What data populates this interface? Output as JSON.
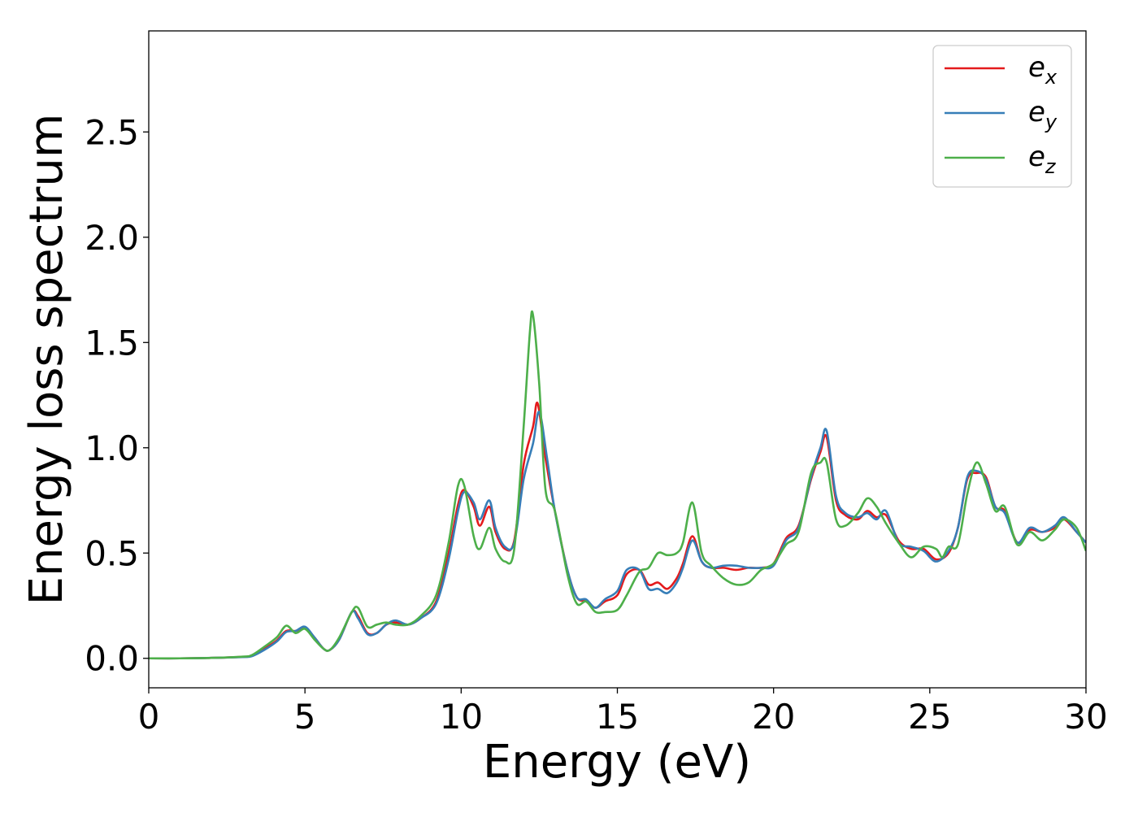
{
  "chart_data": {
    "type": "line",
    "title": "",
    "xlabel": "Energy (eV)",
    "ylabel": "Energy loss spectrum",
    "xlim": [
      0,
      30
    ],
    "ylim": [
      -0.14,
      2.98
    ],
    "xticks": [
      "0",
      "5",
      "10",
      "15",
      "20",
      "25",
      "30"
    ],
    "yticks": [
      "0.0",
      "0.5",
      "1.0",
      "1.5",
      "2.0",
      "2.5"
    ],
    "grid": false,
    "legend_position": "top-right",
    "series": [
      {
        "name": "e_x",
        "label_main": "e",
        "label_sub": "x",
        "color": "#e41a1c",
        "points": [
          [
            0,
            0
          ],
          [
            1,
            0
          ],
          [
            2,
            0.002
          ],
          [
            3,
            0.007
          ],
          [
            3.3,
            0.012
          ],
          [
            3.7,
            0.045
          ],
          [
            4.1,
            0.085
          ],
          [
            4.4,
            0.13
          ],
          [
            4.7,
            0.13
          ],
          [
            5.0,
            0.145
          ],
          [
            5.3,
            0.1
          ],
          [
            5.6,
            0.045
          ],
          [
            5.8,
            0.04
          ],
          [
            6.1,
            0.09
          ],
          [
            6.5,
            0.22
          ],
          [
            6.7,
            0.2
          ],
          [
            7.0,
            0.12
          ],
          [
            7.3,
            0.12
          ],
          [
            7.6,
            0.16
          ],
          [
            7.9,
            0.17
          ],
          [
            8.3,
            0.16
          ],
          [
            8.7,
            0.19
          ],
          [
            9.2,
            0.27
          ],
          [
            9.6,
            0.5
          ],
          [
            9.9,
            0.73
          ],
          [
            10.1,
            0.8
          ],
          [
            10.4,
            0.72
          ],
          [
            10.6,
            0.63
          ],
          [
            10.9,
            0.72
          ],
          [
            11.1,
            0.6
          ],
          [
            11.4,
            0.52
          ],
          [
            11.7,
            0.56
          ],
          [
            12.0,
            0.92
          ],
          [
            12.3,
            1.1
          ],
          [
            12.45,
            1.21
          ],
          [
            12.7,
            0.95
          ],
          [
            13.0,
            0.7
          ],
          [
            13.4,
            0.42
          ],
          [
            13.7,
            0.29
          ],
          [
            14.0,
            0.27
          ],
          [
            14.3,
            0.24
          ],
          [
            14.6,
            0.27
          ],
          [
            15.0,
            0.3
          ],
          [
            15.3,
            0.4
          ],
          [
            15.7,
            0.42
          ],
          [
            16.0,
            0.35
          ],
          [
            16.3,
            0.36
          ],
          [
            16.6,
            0.33
          ],
          [
            16.9,
            0.38
          ],
          [
            17.1,
            0.45
          ],
          [
            17.4,
            0.58
          ],
          [
            17.7,
            0.46
          ],
          [
            18.0,
            0.43
          ],
          [
            18.4,
            0.43
          ],
          [
            18.8,
            0.42
          ],
          [
            19.2,
            0.43
          ],
          [
            19.6,
            0.43
          ],
          [
            20.0,
            0.45
          ],
          [
            20.4,
            0.57
          ],
          [
            20.8,
            0.63
          ],
          [
            21.2,
            0.85
          ],
          [
            21.5,
            0.98
          ],
          [
            21.7,
            1.05
          ],
          [
            22.0,
            0.75
          ],
          [
            22.3,
            0.68
          ],
          [
            22.7,
            0.66
          ],
          [
            23.0,
            0.7
          ],
          [
            23.3,
            0.67
          ],
          [
            23.6,
            0.68
          ],
          [
            24.0,
            0.56
          ],
          [
            24.4,
            0.52
          ],
          [
            24.8,
            0.52
          ],
          [
            25.2,
            0.47
          ],
          [
            25.6,
            0.5
          ],
          [
            25.9,
            0.62
          ],
          [
            26.2,
            0.85
          ],
          [
            26.5,
            0.88
          ],
          [
            26.8,
            0.86
          ],
          [
            27.1,
            0.72
          ],
          [
            27.4,
            0.7
          ],
          [
            27.8,
            0.55
          ],
          [
            28.2,
            0.61
          ],
          [
            28.6,
            0.6
          ],
          [
            29.0,
            0.62
          ],
          [
            29.3,
            0.66
          ],
          [
            29.7,
            0.6
          ],
          [
            30.0,
            0.55
          ]
        ]
      },
      {
        "name": "e_y",
        "label_main": "e",
        "label_sub": "y",
        "color": "#377eb8",
        "points": [
          [
            0,
            0
          ],
          [
            1,
            0
          ],
          [
            2,
            0.002
          ],
          [
            3,
            0.006
          ],
          [
            3.3,
            0.01
          ],
          [
            3.7,
            0.04
          ],
          [
            4.1,
            0.08
          ],
          [
            4.4,
            0.125
          ],
          [
            4.7,
            0.13
          ],
          [
            5.0,
            0.15
          ],
          [
            5.3,
            0.1
          ],
          [
            5.6,
            0.045
          ],
          [
            5.8,
            0.04
          ],
          [
            6.1,
            0.09
          ],
          [
            6.5,
            0.22
          ],
          [
            6.7,
            0.19
          ],
          [
            7.0,
            0.115
          ],
          [
            7.3,
            0.12
          ],
          [
            7.6,
            0.16
          ],
          [
            7.9,
            0.18
          ],
          [
            8.3,
            0.16
          ],
          [
            8.7,
            0.19
          ],
          [
            9.2,
            0.26
          ],
          [
            9.6,
            0.47
          ],
          [
            9.9,
            0.7
          ],
          [
            10.1,
            0.79
          ],
          [
            10.4,
            0.74
          ],
          [
            10.6,
            0.66
          ],
          [
            10.9,
            0.75
          ],
          [
            11.1,
            0.62
          ],
          [
            11.4,
            0.53
          ],
          [
            11.7,
            0.55
          ],
          [
            12.0,
            0.85
          ],
          [
            12.3,
            1.02
          ],
          [
            12.5,
            1.17
          ],
          [
            12.75,
            0.95
          ],
          [
            13.0,
            0.7
          ],
          [
            13.4,
            0.42
          ],
          [
            13.7,
            0.29
          ],
          [
            14.0,
            0.28
          ],
          [
            14.3,
            0.24
          ],
          [
            14.6,
            0.28
          ],
          [
            15.0,
            0.32
          ],
          [
            15.3,
            0.42
          ],
          [
            15.7,
            0.42
          ],
          [
            16.0,
            0.33
          ],
          [
            16.3,
            0.33
          ],
          [
            16.6,
            0.31
          ],
          [
            16.9,
            0.36
          ],
          [
            17.1,
            0.43
          ],
          [
            17.4,
            0.56
          ],
          [
            17.7,
            0.46
          ],
          [
            18.0,
            0.43
          ],
          [
            18.4,
            0.44
          ],
          [
            18.8,
            0.44
          ],
          [
            19.2,
            0.43
          ],
          [
            19.6,
            0.43
          ],
          [
            20.0,
            0.44
          ],
          [
            20.4,
            0.56
          ],
          [
            20.8,
            0.62
          ],
          [
            21.2,
            0.86
          ],
          [
            21.5,
            1.0
          ],
          [
            21.7,
            1.08
          ],
          [
            22.0,
            0.77
          ],
          [
            22.3,
            0.69
          ],
          [
            22.7,
            0.67
          ],
          [
            23.0,
            0.69
          ],
          [
            23.3,
            0.66
          ],
          [
            23.6,
            0.7
          ],
          [
            24.0,
            0.55
          ],
          [
            24.4,
            0.53
          ],
          [
            24.8,
            0.51
          ],
          [
            25.2,
            0.46
          ],
          [
            25.6,
            0.51
          ],
          [
            25.9,
            0.62
          ],
          [
            26.2,
            0.86
          ],
          [
            26.5,
            0.89
          ],
          [
            26.8,
            0.85
          ],
          [
            27.1,
            0.72
          ],
          [
            27.4,
            0.69
          ],
          [
            27.8,
            0.55
          ],
          [
            28.2,
            0.62
          ],
          [
            28.6,
            0.6
          ],
          [
            29.0,
            0.63
          ],
          [
            29.3,
            0.67
          ],
          [
            29.7,
            0.6
          ],
          [
            30.0,
            0.55
          ]
        ]
      },
      {
        "name": "e_z",
        "label_main": "e",
        "label_sub": "z",
        "color": "#4daf4a",
        "points": [
          [
            0,
            0
          ],
          [
            1,
            0
          ],
          [
            2,
            0.002
          ],
          [
            3,
            0.008
          ],
          [
            3.3,
            0.015
          ],
          [
            3.7,
            0.055
          ],
          [
            4.1,
            0.1
          ],
          [
            4.4,
            0.155
          ],
          [
            4.7,
            0.12
          ],
          [
            5.0,
            0.14
          ],
          [
            5.3,
            0.09
          ],
          [
            5.6,
            0.045
          ],
          [
            5.8,
            0.04
          ],
          [
            6.1,
            0.1
          ],
          [
            6.5,
            0.22
          ],
          [
            6.7,
            0.24
          ],
          [
            7.0,
            0.15
          ],
          [
            7.3,
            0.16
          ],
          [
            7.6,
            0.17
          ],
          [
            7.9,
            0.16
          ],
          [
            8.3,
            0.16
          ],
          [
            8.7,
            0.2
          ],
          [
            9.2,
            0.3
          ],
          [
            9.6,
            0.55
          ],
          [
            9.9,
            0.82
          ],
          [
            10.1,
            0.82
          ],
          [
            10.4,
            0.58
          ],
          [
            10.6,
            0.52
          ],
          [
            10.9,
            0.62
          ],
          [
            11.1,
            0.52
          ],
          [
            11.4,
            0.46
          ],
          [
            11.7,
            0.52
          ],
          [
            12.0,
            1.1
          ],
          [
            12.2,
            1.55
          ],
          [
            12.3,
            1.63
          ],
          [
            12.5,
            1.3
          ],
          [
            12.7,
            0.8
          ],
          [
            13.0,
            0.7
          ],
          [
            13.4,
            0.4
          ],
          [
            13.7,
            0.26
          ],
          [
            14.0,
            0.27
          ],
          [
            14.3,
            0.22
          ],
          [
            14.6,
            0.22
          ],
          [
            15.0,
            0.23
          ],
          [
            15.3,
            0.3
          ],
          [
            15.7,
            0.41
          ],
          [
            16.0,
            0.43
          ],
          [
            16.3,
            0.5
          ],
          [
            16.6,
            0.49
          ],
          [
            16.9,
            0.5
          ],
          [
            17.1,
            0.55
          ],
          [
            17.4,
            0.74
          ],
          [
            17.7,
            0.5
          ],
          [
            18.0,
            0.44
          ],
          [
            18.4,
            0.38
          ],
          [
            18.8,
            0.35
          ],
          [
            19.2,
            0.36
          ],
          [
            19.6,
            0.42
          ],
          [
            20.0,
            0.45
          ],
          [
            20.4,
            0.54
          ],
          [
            20.8,
            0.6
          ],
          [
            21.2,
            0.88
          ],
          [
            21.5,
            0.93
          ],
          [
            21.7,
            0.93
          ],
          [
            22.0,
            0.66
          ],
          [
            22.3,
            0.63
          ],
          [
            22.7,
            0.69
          ],
          [
            23.0,
            0.76
          ],
          [
            23.3,
            0.72
          ],
          [
            23.6,
            0.64
          ],
          [
            24.0,
            0.55
          ],
          [
            24.4,
            0.48
          ],
          [
            24.8,
            0.53
          ],
          [
            25.2,
            0.52
          ],
          [
            25.4,
            0.48
          ],
          [
            25.6,
            0.53
          ],
          [
            25.9,
            0.54
          ],
          [
            26.2,
            0.78
          ],
          [
            26.5,
            0.93
          ],
          [
            26.8,
            0.83
          ],
          [
            27.1,
            0.7
          ],
          [
            27.4,
            0.72
          ],
          [
            27.8,
            0.54
          ],
          [
            28.2,
            0.6
          ],
          [
            28.6,
            0.56
          ],
          [
            29.0,
            0.61
          ],
          [
            29.3,
            0.66
          ],
          [
            29.7,
            0.62
          ],
          [
            30.0,
            0.51
          ]
        ]
      }
    ]
  }
}
